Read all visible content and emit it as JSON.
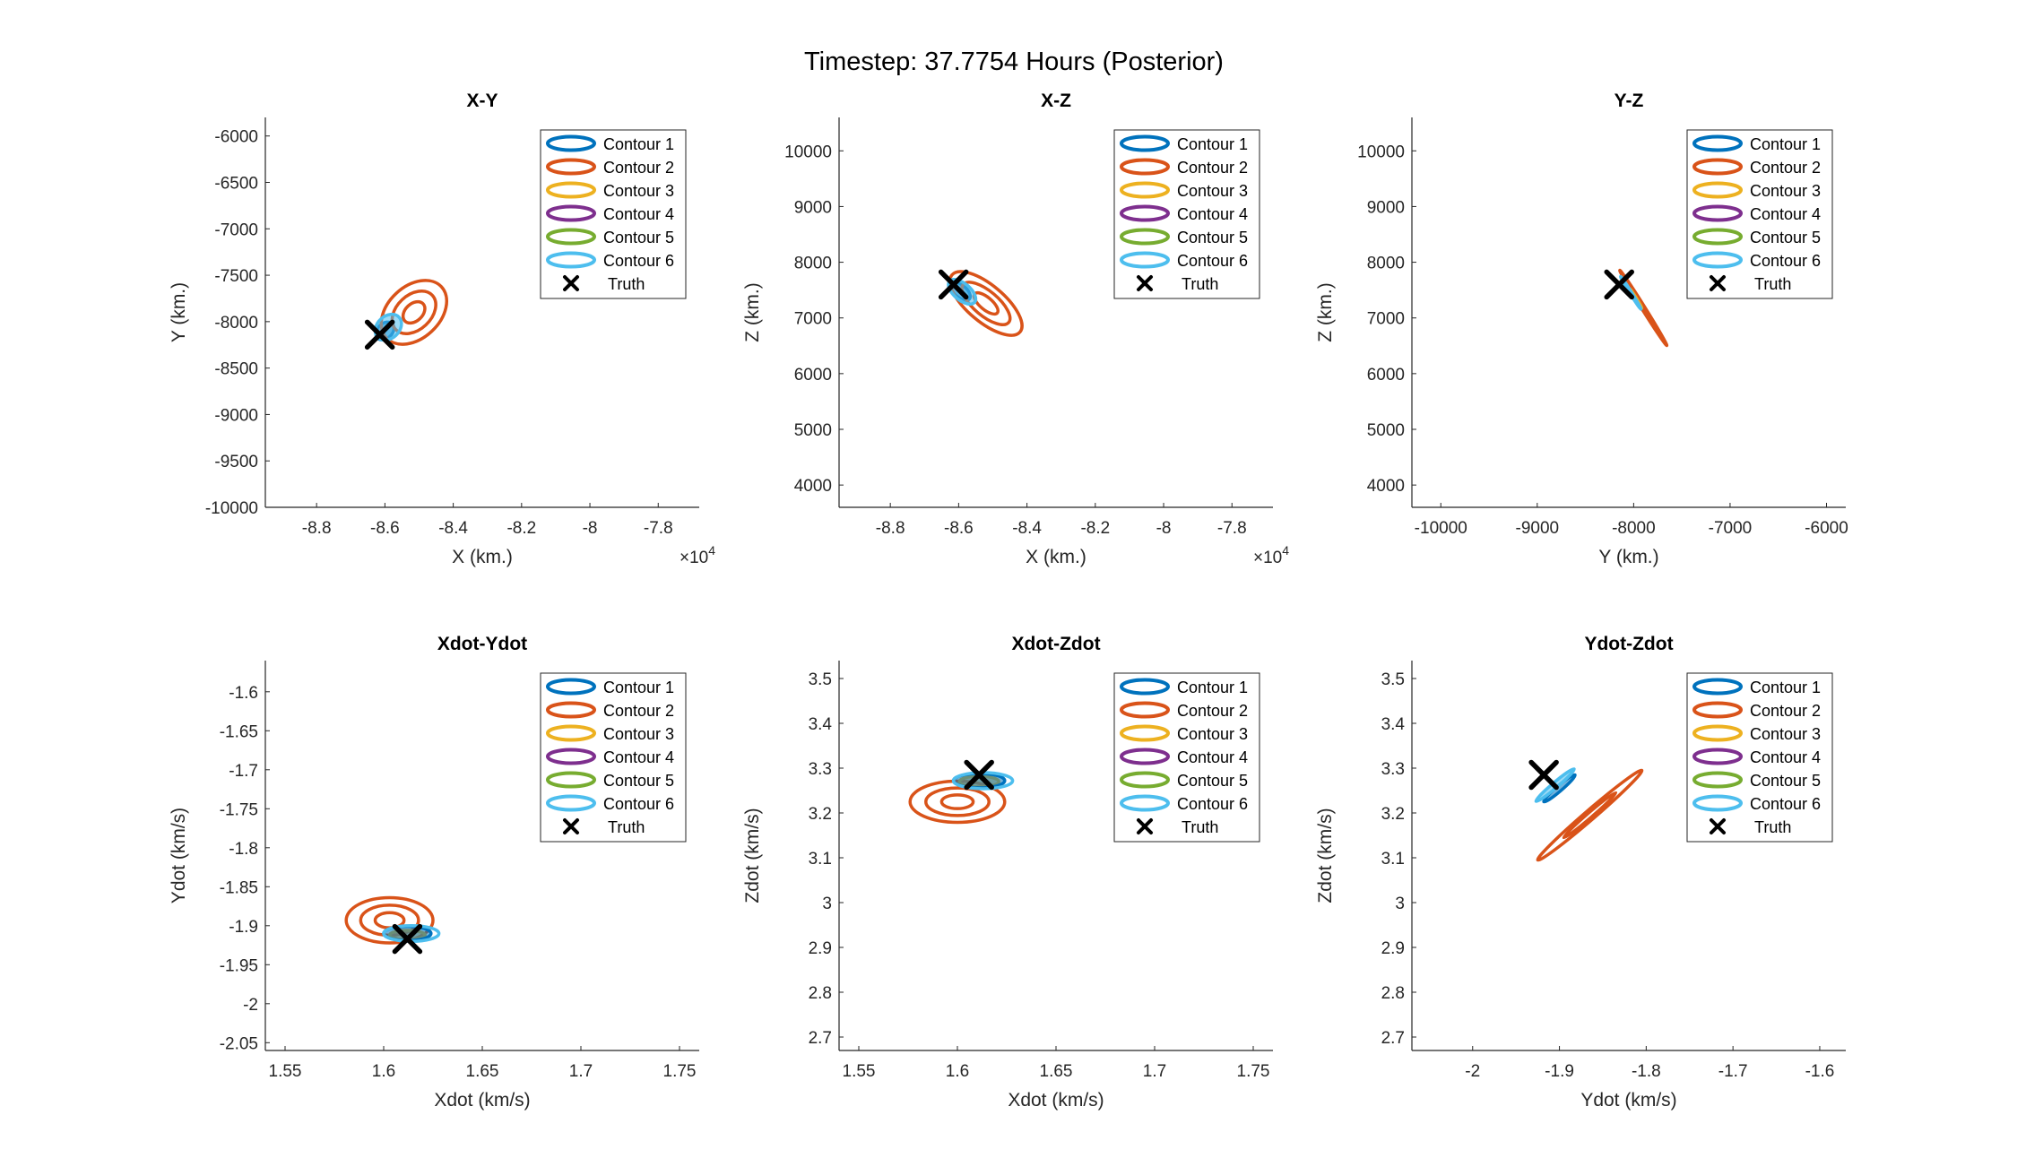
{
  "figure": {
    "suptitle": "Timestep: 37.7754 Hours (Posterior)"
  },
  "legend_entries": [
    "Contour 1",
    "Contour 2",
    "Contour 3",
    "Contour 4",
    "Contour 5",
    "Contour 6",
    "Truth"
  ],
  "colors": {
    "contour_1": "#0072BD",
    "contour_2": "#D95319",
    "contour_3": "#EDB120",
    "contour_4": "#7E2F8E",
    "contour_5": "#77AC30",
    "contour_6": "#4DBEEE",
    "truth": "#000000"
  },
  "chart_data": [
    {
      "type": "line",
      "title": "X-Y",
      "xlabel": "X (km.)",
      "ylabel": "Y (km.)",
      "xlim": [
        -89500,
        -76800
      ],
      "ylim": [
        -10000,
        -5800
      ],
      "xticks": [
        -88000,
        -86000,
        -84000,
        -82000,
        -80000,
        -78000
      ],
      "xticklabels": [
        "-8.8",
        "-8.6",
        "-8.4",
        "-8.2",
        "-8",
        "-7.8"
      ],
      "xexponent": "4",
      "yticks": [
        -10000,
        -9500,
        -9000,
        -8500,
        -8000,
        -7500,
        -7000,
        -6500,
        -6000
      ],
      "yticklabels": [
        "-10000",
        "-9500",
        "-9000",
        "-8500",
        "-8000",
        "-7500",
        "-7000",
        "-6500",
        "-6000"
      ],
      "legend_position": "top-right",
      "truth": {
        "x": -86150,
        "y": -8140
      },
      "contours": [
        {
          "name": "Contour 1",
          "center": [
            -86000,
            -8100
          ],
          "extent": [
            300,
            80
          ],
          "angle_deg": 43,
          "rings": 1,
          "filled": true
        },
        {
          "name": "Contour 2",
          "center": [
            -85150,
            -7900
          ],
          "extent": [
            1100,
            280
          ],
          "angle_deg": 43,
          "rings": 3,
          "filled": false
        },
        {
          "name": "Contour 6",
          "center": [
            -85900,
            -8060
          ],
          "extent": [
            430,
            120
          ],
          "angle_deg": 43,
          "rings": 1,
          "filled": true
        }
      ]
    },
    {
      "type": "line",
      "title": "X-Z",
      "xlabel": "X (km.)",
      "ylabel": "Z (km.)",
      "xlim": [
        -89500,
        -76800
      ],
      "ylim": [
        3600,
        10600
      ],
      "xticks": [
        -88000,
        -86000,
        -84000,
        -82000,
        -80000,
        -78000
      ],
      "xticklabels": [
        "-8.8",
        "-8.6",
        "-8.4",
        "-8.2",
        "-8",
        "-7.8"
      ],
      "xexponent": "4",
      "yticks": [
        4000,
        5000,
        6000,
        7000,
        8000,
        9000,
        10000
      ],
      "yticklabels": [
        "4000",
        "5000",
        "6000",
        "7000",
        "8000",
        "9000",
        "10000"
      ],
      "legend_position": "top-right",
      "truth": {
        "x": -86150,
        "y": 7600
      },
      "contours": [
        {
          "name": "Contour 1",
          "center": [
            -85950,
            0
          ],
          "center_z": 7480,
          "extent": [
            350,
            110
          ],
          "angle_deg": -40,
          "rings": 1,
          "filled": true
        },
        {
          "name": "Contour 2",
          "center": [
            -85200,
            0
          ],
          "center_z": 7260,
          "extent": [
            1300,
            330
          ],
          "angle_deg": -40,
          "rings": 3,
          "filled": false
        },
        {
          "name": "Contour 6",
          "center": [
            -85900,
            0
          ],
          "center_z": 7470,
          "extent": [
            480,
            150
          ],
          "angle_deg": -40,
          "rings": 1,
          "filled": true
        }
      ]
    },
    {
      "type": "line",
      "title": "Y-Z",
      "xlabel": "Y (km.)",
      "ylabel": "Z (km.)",
      "xlim": [
        -10300,
        -5800
      ],
      "ylim": [
        3600,
        10600
      ],
      "xticks": [
        -10000,
        -9000,
        -8000,
        -7000,
        -6000
      ],
      "xticklabels": [
        "-10000",
        "-9000",
        "-8000",
        "-7000",
        "-6000"
      ],
      "xexponent": "",
      "yticks": [
        4000,
        5000,
        6000,
        7000,
        8000,
        9000,
        10000
      ],
      "yticklabels": [
        "4000",
        "5000",
        "6000",
        "7000",
        "8000",
        "9000",
        "10000"
      ],
      "legend_position": "top-right",
      "truth": {
        "x": -8150,
        "y": 7600
      },
      "contours": [
        {
          "name": "Contour 1",
          "center": [
            -8000,
            0
          ],
          "center_z": 7400,
          "extent": [
            180,
            15
          ],
          "angle_deg": -58,
          "rings": 1,
          "filled": true
        },
        {
          "name": "Contour 2",
          "center": [
            -7900,
            0
          ],
          "center_z": 7180,
          "extent": [
            460,
            30
          ],
          "angle_deg": -58,
          "rings": 2,
          "filled": false
        },
        {
          "name": "Contour 3",
          "center": [
            -7980,
            0
          ],
          "center_z": 7350,
          "extent": [
            120,
            12
          ],
          "angle_deg": -58,
          "rings": 1,
          "filled": true
        },
        {
          "name": "Contour 6",
          "center": [
            -8030,
            0
          ],
          "center_z": 7450,
          "extent": [
            200,
            18
          ],
          "angle_deg": -58,
          "rings": 1,
          "filled": true
        }
      ]
    },
    {
      "type": "line",
      "title": "Xdot-Ydot",
      "xlabel": "Xdot (km/s)",
      "ylabel": "Ydot (km/s)",
      "xlim": [
        1.54,
        1.76
      ],
      "ylim": [
        -2.06,
        -1.56
      ],
      "xticks": [
        1.55,
        1.6,
        1.65,
        1.7,
        1.75
      ],
      "xticklabels": [
        "1.55",
        "1.6",
        "1.65",
        "1.7",
        "1.75"
      ],
      "xexponent": "",
      "yticks": [
        -2.05,
        -2,
        -1.95,
        -1.9,
        -1.85,
        -1.8,
        -1.75,
        -1.7,
        -1.65,
        -1.6
      ],
      "yticklabels": [
        "-2.05",
        "-2",
        "-1.95",
        "-1.9",
        "-1.85",
        "-1.8",
        "-1.75",
        "-1.7",
        "-1.65",
        "-1.6"
      ],
      "legend_position": "top-right",
      "truth": {
        "x": 1.612,
        "y": -1.917
      },
      "contours": [
        {
          "name": "Contour 2",
          "center": [
            1.603,
            -1.893
          ],
          "extent": [
            0.022,
            0.029
          ],
          "angle_deg": 0,
          "rings": 3,
          "filled": false
        },
        {
          "name": "Contour 3",
          "center": [
            1.612,
            -1.912
          ],
          "extent": [
            0.009,
            0.006
          ],
          "angle_deg": 0,
          "rings": 1,
          "filled": true
        },
        {
          "name": "Contour 1",
          "center": [
            1.612,
            -1.91
          ],
          "extent": [
            0.012,
            0.009
          ],
          "angle_deg": 0,
          "rings": 1,
          "filled": true
        },
        {
          "name": "Contour 6",
          "center": [
            1.614,
            -1.91
          ],
          "extent": [
            0.014,
            0.01
          ],
          "angle_deg": 0,
          "rings": 1,
          "filled": false
        }
      ]
    },
    {
      "type": "line",
      "title": "Xdot-Zdot",
      "xlabel": "Xdot (km/s)",
      "ylabel": "Zdot (km/s)",
      "xlim": [
        1.54,
        1.76
      ],
      "ylim": [
        2.67,
        3.54
      ],
      "xticks": [
        1.55,
        1.6,
        1.65,
        1.7,
        1.75
      ],
      "xticklabels": [
        "1.55",
        "1.6",
        "1.65",
        "1.7",
        "1.75"
      ],
      "xexponent": "",
      "yticks": [
        2.7,
        2.8,
        2.9,
        3,
        3.1,
        3.2,
        3.3,
        3.4,
        3.5
      ],
      "yticklabels": [
        "2.7",
        "2.8",
        "2.9",
        "3",
        "3.1",
        "3.2",
        "3.3",
        "3.4",
        "3.5"
      ],
      "legend_position": "top-right",
      "truth": {
        "x": 1.611,
        "y": 3.285
      },
      "contours": [
        {
          "name": "Contour 2",
          "center": [
            1.6,
            3.225
          ],
          "extent": [
            0.024,
            0.046
          ],
          "angle_deg": 0,
          "rings": 3,
          "filled": false
        },
        {
          "name": "Contour 3",
          "center": [
            1.611,
            3.27
          ],
          "extent": [
            0.01,
            0.012
          ],
          "angle_deg": 0,
          "rings": 1,
          "filled": true
        },
        {
          "name": "Contour 1",
          "center": [
            1.611,
            3.272
          ],
          "extent": [
            0.013,
            0.016
          ],
          "angle_deg": 0,
          "rings": 1,
          "filled": true
        },
        {
          "name": "Contour 6",
          "center": [
            1.613,
            3.272
          ],
          "extent": [
            0.015,
            0.018
          ],
          "angle_deg": 0,
          "rings": 1,
          "filled": false
        }
      ]
    },
    {
      "type": "line",
      "title": "Ydot-Zdot",
      "xlabel": "Ydot (km/s)",
      "ylabel": "Zdot (km/s)",
      "xlim": [
        -2.07,
        -1.57
      ],
      "ylim": [
        2.67,
        3.54
      ],
      "xticks": [
        -2,
        -1.9,
        -1.8,
        -1.7,
        -1.6
      ],
      "xticklabels": [
        "-2",
        "-1.9",
        "-1.8",
        "-1.7",
        "-1.6"
      ],
      "xexponent": "",
      "yticks": [
        2.7,
        2.8,
        2.9,
        3,
        3.1,
        3.2,
        3.3,
        3.4,
        3.5
      ],
      "yticklabels": [
        "2.7",
        "2.8",
        "2.9",
        "3",
        "3.1",
        "3.2",
        "3.3",
        "3.4",
        "3.5"
      ],
      "legend_position": "top-right",
      "truth": {
        "x": -1.918,
        "y": 3.285
      },
      "contours": [
        {
          "name": "Contour 2",
          "center": [
            -1.865,
            3.195
          ],
          "extent": [
            0.06,
            0.1
          ],
          "angle_deg": 0,
          "rings": 2,
          "filled": false,
          "diagonal": true
        },
        {
          "name": "Contour 1",
          "center": [
            -1.9,
            3.255
          ],
          "extent": [
            0.018,
            0.03
          ],
          "angle_deg": 0,
          "rings": 1,
          "filled": true,
          "diagonal": true
        },
        {
          "name": "Contour 6",
          "center": [
            -1.905,
            3.262
          ],
          "extent": [
            0.022,
            0.036
          ],
          "angle_deg": 0,
          "rings": 1,
          "filled": true,
          "diagonal": true
        }
      ]
    }
  ]
}
